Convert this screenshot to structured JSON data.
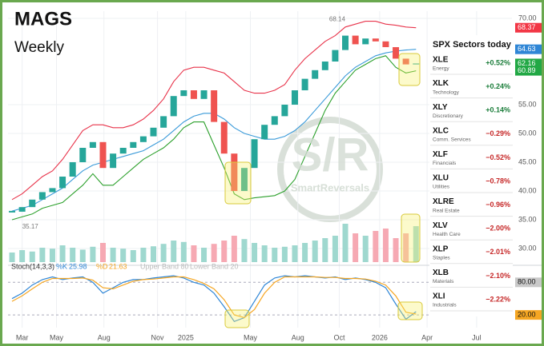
{
  "header": {
    "title": "MAGS",
    "subtitle": "Weekly"
  },
  "watermark": {
    "logo": "S/R",
    "text": "SmartReversals"
  },
  "chart_data": [
    {
      "type": "candlestick",
      "values": [
        36.4,
        37.2,
        38.5,
        39.8,
        40.5,
        42.5,
        45.0,
        47.5,
        48.5,
        44.0,
        46.5,
        47.5,
        48.5,
        49.5,
        51.0,
        53.0,
        56.5,
        57.5,
        56.0,
        57.5,
        52.0,
        46.5,
        40.0,
        44.0,
        49.0,
        51.5,
        53.0,
        55.0,
        57.5,
        59.5,
        61.0,
        62.5,
        64.5,
        67.0,
        65.5,
        66.5,
        66.0,
        65.0,
        63.0,
        62.0,
        62.16
      ],
      "up_color": "#26a69a",
      "down_color": "#ef5350",
      "bands": [
        {
          "color": "#e8334a",
          "values": [
            38.5,
            39.5,
            41,
            42.5,
            43.5,
            45.5,
            48,
            50.5,
            51.5,
            51.5,
            51,
            51,
            51.5,
            52.5,
            54,
            56,
            59,
            61,
            61.5,
            61.5,
            61,
            60.5,
            59,
            57.5,
            57,
            57,
            57.5,
            58.5,
            61,
            63,
            64.5,
            66,
            67,
            68.5,
            69,
            69.5,
            69.5,
            69,
            68.8,
            68.5,
            68.37
          ]
        },
        {
          "color": "#3a9ad9",
          "values": [
            36.5,
            37,
            37.5,
            38.5,
            39.5,
            40.5,
            42,
            43.5,
            44.5,
            45,
            45.5,
            46,
            46.5,
            47,
            48,
            49,
            50.5,
            52,
            53,
            53.5,
            53.5,
            52.5,
            51,
            50,
            49.5,
            49,
            49,
            49.5,
            50.5,
            52,
            54,
            56,
            58,
            60,
            61.5,
            62.5,
            63.5,
            64,
            64.3,
            64.5,
            64.63
          ]
        },
        {
          "color": "#2ca02c",
          "values": [
            35,
            35.5,
            36,
            37,
            37.5,
            38,
            39.5,
            41,
            43,
            41,
            41,
            42.5,
            44,
            45.5,
            46.5,
            47.5,
            49,
            51,
            52,
            52,
            48,
            44,
            39.5,
            38.5,
            38.8,
            39,
            39.2,
            40,
            42,
            46,
            50,
            54,
            57,
            59,
            61,
            62,
            63,
            63.5,
            61.5,
            60.5,
            60.89
          ]
        }
      ],
      "volume": {
        "values": [
          20,
          25,
          22,
          30,
          28,
          35,
          30,
          26,
          32,
          40,
          30,
          28,
          25,
          30,
          33,
          38,
          45,
          42,
          35,
          30,
          38,
          45,
          55,
          48,
          40,
          35,
          30,
          32,
          35,
          40,
          45,
          50,
          55,
          80,
          60,
          55,
          65,
          70,
          50,
          60,
          75
        ]
      },
      "ylim": [
        28,
        71
      ],
      "yticks": [
        {
          "value": 30,
          "label": "30.00"
        },
        {
          "value": 35,
          "label": "35.00"
        },
        {
          "value": 40,
          "label": "40.00"
        },
        {
          "value": 45,
          "label": "45.00"
        },
        {
          "value": 50,
          "label": "50.00"
        },
        {
          "value": 55,
          "label": "55.00"
        },
        {
          "value": 70,
          "label": "70.00"
        }
      ],
      "price_labels": [
        {
          "value": 68.37,
          "label": "68.37",
          "color": "#f23645"
        },
        {
          "value": 64.63,
          "label": "64.63",
          "color": "#2f86d6"
        },
        {
          "value": 62.16,
          "label": "62.16",
          "color": "#22a845"
        },
        {
          "value": 60.89,
          "label": "60.89",
          "color": "#22a845"
        }
      ],
      "annotations": [
        {
          "x": 32.2,
          "value": 68.14,
          "label": "68.14"
        },
        {
          "x": 1.8,
          "value": 35.17,
          "label": "35.17"
        }
      ],
      "xlim": [
        -0.4,
        49.5
      ],
      "xticks": [
        {
          "value": 1.0,
          "label": "Mar"
        },
        {
          "value": 4.4,
          "label": "May"
        },
        {
          "value": 9.1,
          "label": "Aug"
        },
        {
          "value": 14.4,
          "label": "Nov"
        },
        {
          "value": 17.2,
          "label": "2025"
        },
        {
          "value": 23.6,
          "label": "May"
        },
        {
          "value": 28.3,
          "label": "Aug"
        },
        {
          "value": 32.4,
          "label": "Oct"
        },
        {
          "value": 36.4,
          "label": "2026"
        },
        {
          "value": 41.1,
          "label": "Apr"
        },
        {
          "value": 46.0,
          "label": "Jul"
        }
      ]
    },
    {
      "type": "line",
      "title": "Stoch(14,3,3)",
      "series": [
        {
          "name": "%K",
          "color": "#2f86d6",
          "values": [
            50,
            60,
            75,
            85,
            90,
            85,
            88,
            90,
            80,
            60,
            70,
            80,
            85,
            85,
            88,
            90,
            92,
            88,
            80,
            75,
            60,
            35,
            8,
            15,
            45,
            75,
            88,
            92,
            90,
            92,
            90,
            88,
            90,
            85,
            88,
            85,
            80,
            70,
            40,
            12,
            25.98
          ],
          "value_label": "25.98"
        },
        {
          "name": "%D",
          "color": "#f5a623",
          "values": [
            45,
            55,
            68,
            80,
            87,
            87,
            87,
            88,
            84,
            70,
            68,
            75,
            82,
            85,
            86,
            88,
            90,
            90,
            85,
            78,
            68,
            48,
            20,
            15,
            30,
            60,
            80,
            90,
            90,
            90,
            90,
            89,
            89,
            87,
            87,
            86,
            82,
            75,
            55,
            25,
            21.63
          ],
          "value_label": "21.63"
        }
      ],
      "bands": [
        {
          "value": 80,
          "label": "Upper Band 80"
        },
        {
          "value": 20,
          "label": "Lower Band 20"
        }
      ],
      "ylim": [
        0,
        100
      ],
      "yticks": [
        {
          "value": 80,
          "label": "80.00"
        },
        {
          "value": 20,
          "label": "20.00"
        }
      ]
    }
  ],
  "sectors": {
    "title": "SPX Sectors today",
    "rows": [
      {
        "ticker": "XLE",
        "name": "Energy",
        "change": "+0.52%"
      },
      {
        "ticker": "XLK",
        "name": "Technology",
        "change": "+0.24%"
      },
      {
        "ticker": "XLY",
        "name": "Discretionary",
        "change": "+0.14%"
      },
      {
        "ticker": "XLC",
        "name": "Comm. Services",
        "change": "−0.29%"
      },
      {
        "ticker": "XLF",
        "name": "Financials",
        "change": "−0.52%"
      },
      {
        "ticker": "XLU",
        "name": "Utilities",
        "change": "−0.78%"
      },
      {
        "ticker": "XLRE",
        "name": "Real Estate",
        "change": "−0.96%"
      },
      {
        "ticker": "XLV",
        "name": "Health Care",
        "change": "−2.00%"
      },
      {
        "ticker": "XLP",
        "name": "Staples",
        "change": "−2.01%"
      },
      {
        "ticker": "XLB",
        "name": "Materials",
        "change": "−2.10%"
      },
      {
        "ticker": "XLI",
        "name": "Industrials",
        "change": "−2.22%"
      }
    ]
  }
}
